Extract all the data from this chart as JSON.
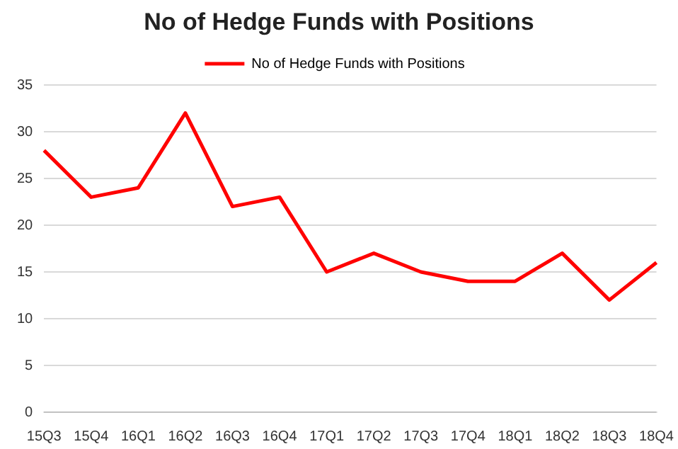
{
  "chart_data": {
    "type": "line",
    "title": "No of Hedge Funds with Positions",
    "categories": [
      "15Q3",
      "15Q4",
      "16Q1",
      "16Q2",
      "16Q3",
      "16Q4",
      "17Q1",
      "17Q2",
      "17Q3",
      "17Q4",
      "18Q1",
      "18Q2",
      "18Q3",
      "18Q4"
    ],
    "series": [
      {
        "name": "No of Hedge Funds with Positions",
        "color": "#ff0000",
        "values": [
          28,
          23,
          24,
          32,
          22,
          23,
          15,
          17,
          15,
          14,
          14,
          17,
          12,
          16
        ]
      }
    ],
    "ylim": [
      0,
      35
    ],
    "yticks": [
      0,
      5,
      10,
      15,
      20,
      25,
      30,
      35
    ],
    "grid": "y",
    "legend": "top",
    "marker": "none",
    "line_style": "solid"
  }
}
